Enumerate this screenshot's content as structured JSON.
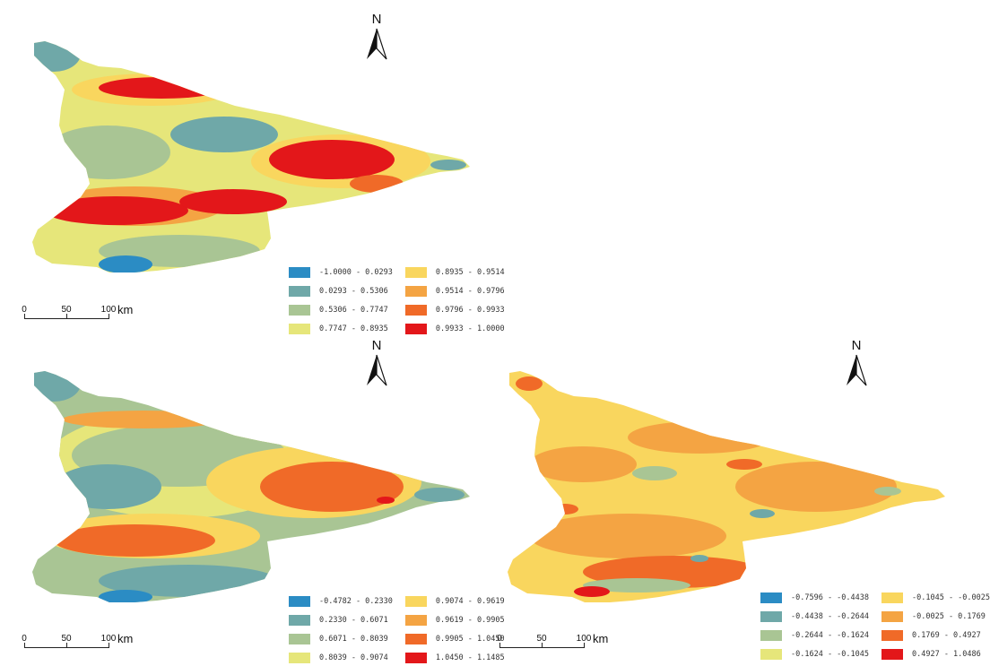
{
  "colors": {
    "c1": "#2b8cc4",
    "c2": "#6fa8a8",
    "c3": "#a9c594",
    "c4": "#e6e67a",
    "c5": "#f9d65e",
    "c6": "#f4a443",
    "c7": "#f06a28",
    "c8": "#e3171a"
  },
  "north_label": "N",
  "scale": {
    "ticks": [
      "0",
      "50",
      "100"
    ],
    "unit": "km"
  },
  "panels": [
    {
      "id": "top",
      "legend": [
        {
          "label": "-1.0000 - 0.0293",
          "color": "#2b8cc4"
        },
        {
          "label": "0.8935 - 0.9514",
          "color": "#f9d65e"
        },
        {
          "label": "0.0293 - 0.5306",
          "color": "#6fa8a8"
        },
        {
          "label": "0.9514 - 0.9796",
          "color": "#f4a443"
        },
        {
          "label": "0.5306 - 0.7747",
          "color": "#a9c594"
        },
        {
          "label": "0.9796 - 0.9933",
          "color": "#f06a28"
        },
        {
          "label": "0.7747 - 0.8935",
          "color": "#e6e67a"
        },
        {
          "label": "0.9933 - 1.0000",
          "color": "#e3171a"
        }
      ]
    },
    {
      "id": "bottom-left",
      "legend": [
        {
          "label": "-0.4782 - 0.2330",
          "color": "#2b8cc4"
        },
        {
          "label": "0.9074 - 0.9619",
          "color": "#f9d65e"
        },
        {
          "label": "0.2330 - 0.6071",
          "color": "#6fa8a8"
        },
        {
          "label": "0.9619 - 0.9905",
          "color": "#f4a443"
        },
        {
          "label": "0.6071 - 0.8039",
          "color": "#a9c594"
        },
        {
          "label": "0.9905 - 1.0450",
          "color": "#f06a28"
        },
        {
          "label": "0.8039 - 0.9074",
          "color": "#e6e67a"
        },
        {
          "label": "1.0450 - 1.1485",
          "color": "#e3171a"
        }
      ]
    },
    {
      "id": "bottom-right",
      "legend": [
        {
          "label": "-0.7596 - -0.4438",
          "color": "#2b8cc4"
        },
        {
          "label": "-0.1045 - -0.0025",
          "color": "#f9d65e"
        },
        {
          "label": "-0.4438 - -0.2644",
          "color": "#6fa8a8"
        },
        {
          "label": "-0.0025 - 0.1769",
          "color": "#f4a443"
        },
        {
          "label": "-0.2644 - -0.1624",
          "color": "#a9c594"
        },
        {
          "label": "0.1769 - 0.4927",
          "color": "#f06a28"
        },
        {
          "label": "-0.1624 - -0.1045",
          "color": "#e6e67a"
        },
        {
          "label": "0.4927 - 1.0486",
          "color": "#e3171a"
        }
      ]
    }
  ]
}
